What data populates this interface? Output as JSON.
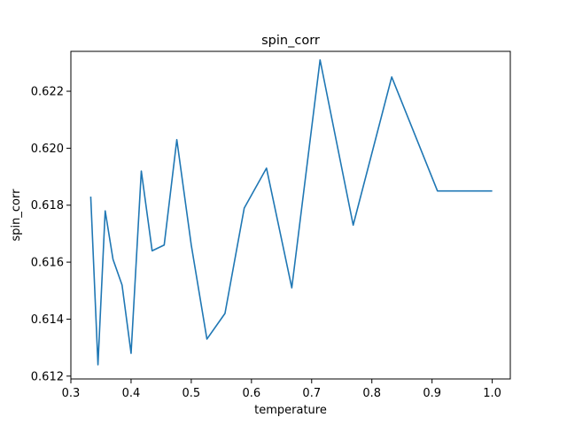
{
  "chart_data": {
    "type": "line",
    "title": "spin_corr",
    "xlabel": "temperature",
    "ylabel": "spin_corr",
    "xlim": [
      0.3,
      1.03
    ],
    "ylim": [
      0.6119,
      0.6234
    ],
    "xticks": [
      0.3,
      0.4,
      0.5,
      0.6,
      0.7,
      0.8,
      0.9,
      1.0
    ],
    "xtick_labels": [
      "0.3",
      "0.4",
      "0.5",
      "0.6",
      "0.7",
      "0.8",
      "0.9",
      "1.0"
    ],
    "yticks": [
      0.612,
      0.614,
      0.616,
      0.618,
      0.62,
      0.622
    ],
    "ytick_labels": [
      "0.612",
      "0.614",
      "0.616",
      "0.618",
      "0.620",
      "0.622"
    ],
    "grid": false,
    "legend": false,
    "series": [
      {
        "color": "#1f77b4",
        "x": [
          0.333,
          0.345,
          0.357,
          0.37,
          0.385,
          0.4,
          0.417,
          0.435,
          0.455,
          0.476,
          0.5,
          0.526,
          0.556,
          0.588,
          0.625,
          0.667,
          0.714,
          0.769,
          0.833,
          0.909,
          1.0
        ],
        "y": [
          0.6183,
          0.6124,
          0.6178,
          0.6161,
          0.6152,
          0.6128,
          0.6192,
          0.6164,
          0.6166,
          0.6203,
          0.6166,
          0.6133,
          0.6142,
          0.6179,
          0.6193,
          0.6151,
          0.6231,
          0.6173,
          0.6225,
          0.6185,
          0.6185
        ]
      }
    ]
  }
}
